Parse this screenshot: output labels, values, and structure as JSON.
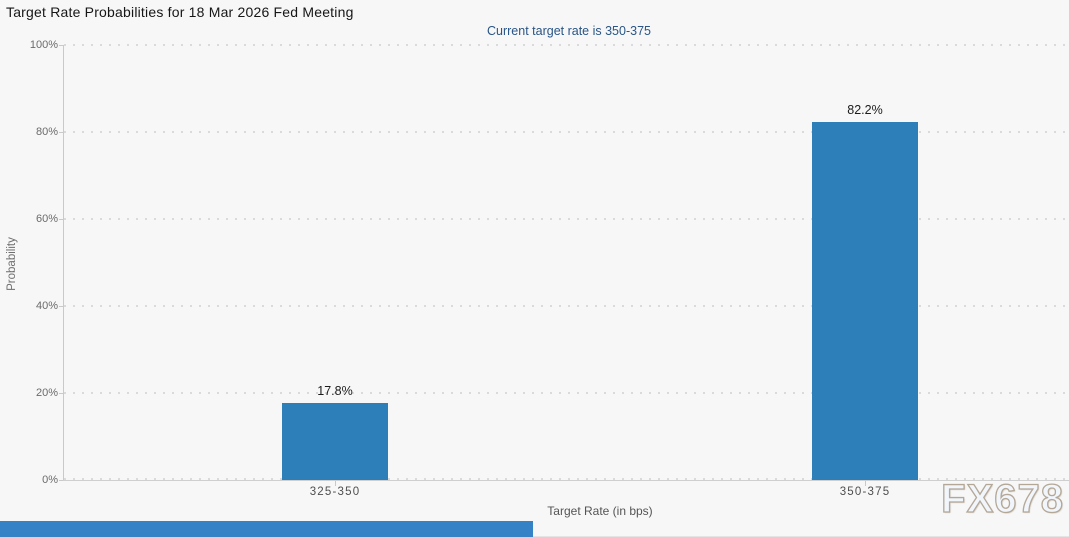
{
  "chart_data": {
    "type": "bar",
    "title": "Target Rate Probabilities for 18 Mar 2026 Fed Meeting",
    "subtitle": "Current target rate is 350-375",
    "xlabel": "Target Rate (in bps)",
    "ylabel": "Probability",
    "categories": [
      "325-350",
      "350-375"
    ],
    "values": [
      17.8,
      82.2
    ],
    "value_labels": [
      "17.8%",
      "82.2%"
    ],
    "ytick_labels": [
      "0%",
      "20%",
      "40%",
      "60%",
      "80%",
      "100%"
    ],
    "ylim": [
      0,
      100
    ],
    "grid": "horizontal-dotted",
    "legend": "none",
    "bar_color": "#2c7fb8"
  },
  "watermark": "FX678",
  "colors": {
    "background": "#f7f7f7",
    "bar": "#2c7fb8",
    "subtitle": "#2a5586",
    "scrollbar_thumb": "#3583c6"
  }
}
